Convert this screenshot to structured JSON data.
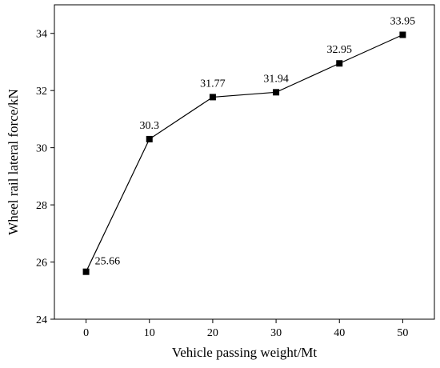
{
  "chart_data": {
    "type": "line",
    "title": "",
    "xlabel": "Vehicle passing weight/Mt",
    "ylabel": "Wheel rail lateral  force/kN",
    "xlim": [
      -5,
      55
    ],
    "ylim": [
      24,
      35
    ],
    "x_ticks": [
      0,
      10,
      20,
      30,
      40,
      50
    ],
    "x_tick_labels": [
      "0",
      "10",
      "20",
      "30",
      "40",
      "50"
    ],
    "y_ticks": [
      24,
      26,
      28,
      30,
      32,
      34
    ],
    "y_tick_labels": [
      "24",
      "26",
      "28",
      "30",
      "32",
      "34"
    ],
    "grid": false,
    "series": [
      {
        "x": [
          0,
          10,
          20,
          30,
          40,
          50
        ],
        "values": [
          25.66,
          30.3,
          31.77,
          31.94,
          32.95,
          33.95
        ],
        "data_labels": [
          "25.66",
          "30.3",
          "31.77",
          "31.94",
          "32.95",
          "33.95"
        ],
        "color": "#000000",
        "marker": "square"
      }
    ]
  }
}
